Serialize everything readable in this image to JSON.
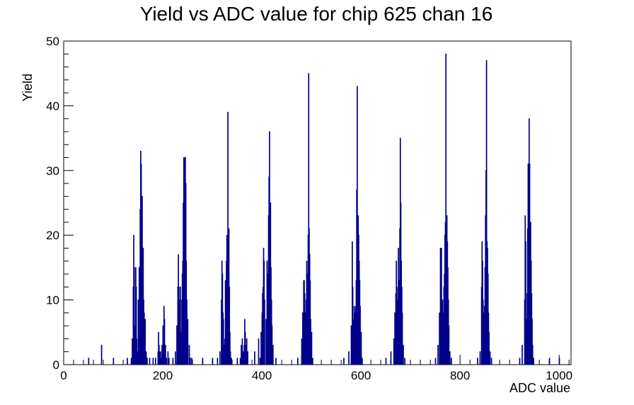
{
  "chart_data": {
    "type": "histogram",
    "title": "Yield vs ADC value for chip 625 chan 16",
    "xlabel": "ADC value",
    "ylabel": "Yield",
    "xlim": [
      0,
      1024
    ],
    "ylim": [
      0,
      50
    ],
    "x_ticks": [
      "0",
      "200",
      "400",
      "600",
      "800",
      "1000"
    ],
    "y_ticks": [
      "0",
      "10",
      "20",
      "30",
      "40",
      "50"
    ],
    "bin_width": 1,
    "line_color": "#00008b",
    "grid": false,
    "bins": [
      [
        50,
        1
      ],
      [
        76,
        3
      ],
      [
        100,
        1
      ],
      [
        128,
        1
      ],
      [
        136,
        1
      ],
      [
        138,
        4
      ],
      [
        140,
        12
      ],
      [
        141,
        20
      ],
      [
        142,
        15
      ],
      [
        143,
        6
      ],
      [
        144,
        3
      ],
      [
        145,
        15
      ],
      [
        146,
        12
      ],
      [
        147,
        4
      ],
      [
        148,
        2
      ],
      [
        150,
        10
      ],
      [
        152,
        15
      ],
      [
        154,
        24
      ],
      [
        155,
        33
      ],
      [
        156,
        31
      ],
      [
        157,
        23
      ],
      [
        158,
        26
      ],
      [
        159,
        15
      ],
      [
        160,
        18
      ],
      [
        161,
        10
      ],
      [
        162,
        8
      ],
      [
        164,
        7
      ],
      [
        166,
        2
      ],
      [
        168,
        1
      ],
      [
        173,
        1
      ],
      [
        180,
        1
      ],
      [
        185,
        1
      ],
      [
        190,
        2
      ],
      [
        191,
        5
      ],
      [
        192,
        3
      ],
      [
        193,
        2
      ],
      [
        195,
        2
      ],
      [
        196,
        1
      ],
      [
        198,
        3
      ],
      [
        200,
        6
      ],
      [
        201,
        4
      ],
      [
        202,
        9
      ],
      [
        203,
        7
      ],
      [
        205,
        3
      ],
      [
        207,
        1
      ],
      [
        210,
        2
      ],
      [
        212,
        1
      ],
      [
        220,
        1
      ],
      [
        225,
        2
      ],
      [
        228,
        6
      ],
      [
        230,
        12
      ],
      [
        231,
        17
      ],
      [
        232,
        12
      ],
      [
        233,
        5
      ],
      [
        234,
        10
      ],
      [
        235,
        12
      ],
      [
        236,
        5
      ],
      [
        238,
        10
      ],
      [
        239,
        14
      ],
      [
        240,
        16
      ],
      [
        241,
        25
      ],
      [
        242,
        32
      ],
      [
        243,
        32
      ],
      [
        244,
        18
      ],
      [
        245,
        32
      ],
      [
        246,
        28
      ],
      [
        247,
        16
      ],
      [
        248,
        10
      ],
      [
        250,
        7
      ],
      [
        253,
        3
      ],
      [
        255,
        1
      ],
      [
        258,
        1
      ],
      [
        280,
        1
      ],
      [
        300,
        1
      ],
      [
        310,
        1
      ],
      [
        315,
        2
      ],
      [
        318,
        10
      ],
      [
        319,
        16
      ],
      [
        320,
        14
      ],
      [
        321,
        8
      ],
      [
        322,
        7
      ],
      [
        324,
        3
      ],
      [
        325,
        4
      ],
      [
        326,
        13
      ],
      [
        328,
        16
      ],
      [
        329,
        20
      ],
      [
        330,
        14
      ],
      [
        331,
        39
      ],
      [
        332,
        17
      ],
      [
        333,
        21
      ],
      [
        334,
        12
      ],
      [
        335,
        5
      ],
      [
        336,
        2
      ],
      [
        338,
        1
      ],
      [
        350,
        1
      ],
      [
        356,
        1
      ],
      [
        358,
        3
      ],
      [
        360,
        4
      ],
      [
        362,
        2
      ],
      [
        364,
        3
      ],
      [
        365,
        7
      ],
      [
        366,
        5
      ],
      [
        367,
        3
      ],
      [
        369,
        4
      ],
      [
        371,
        2
      ],
      [
        385,
        2
      ],
      [
        393,
        4
      ],
      [
        396,
        1
      ],
      [
        398,
        5
      ],
      [
        400,
        8
      ],
      [
        401,
        11
      ],
      [
        402,
        12
      ],
      [
        403,
        18
      ],
      [
        404,
        16
      ],
      [
        405,
        10
      ],
      [
        408,
        7
      ],
      [
        410,
        16
      ],
      [
        411,
        9
      ],
      [
        412,
        14
      ],
      [
        413,
        23
      ],
      [
        414,
        29
      ],
      [
        415,
        36
      ],
      [
        416,
        24
      ],
      [
        417,
        25
      ],
      [
        418,
        15
      ],
      [
        419,
        10
      ],
      [
        420,
        6
      ],
      [
        422,
        3
      ],
      [
        428,
        1
      ],
      [
        472,
        1
      ],
      [
        480,
        4
      ],
      [
        482,
        8
      ],
      [
        484,
        13
      ],
      [
        485,
        13
      ],
      [
        486,
        11
      ],
      [
        487,
        6
      ],
      [
        488,
        8
      ],
      [
        489,
        10
      ],
      [
        490,
        16
      ],
      [
        491,
        14
      ],
      [
        493,
        20
      ],
      [
        494,
        45
      ],
      [
        495,
        21
      ],
      [
        496,
        17
      ],
      [
        497,
        13
      ],
      [
        498,
        7
      ],
      [
        500,
        5
      ],
      [
        502,
        1
      ],
      [
        565,
        1
      ],
      [
        575,
        2
      ],
      [
        580,
        6
      ],
      [
        582,
        19
      ],
      [
        583,
        12
      ],
      [
        584,
        7
      ],
      [
        585,
        6
      ],
      [
        586,
        9
      ],
      [
        587,
        8
      ],
      [
        588,
        5
      ],
      [
        589,
        9
      ],
      [
        590,
        13
      ],
      [
        591,
        27
      ],
      [
        592,
        43
      ],
      [
        593,
        22
      ],
      [
        594,
        23
      ],
      [
        595,
        20
      ],
      [
        596,
        16
      ],
      [
        597,
        13
      ],
      [
        598,
        9
      ],
      [
        600,
        5
      ],
      [
        602,
        1
      ],
      [
        650,
        1
      ],
      [
        660,
        2
      ],
      [
        666,
        4
      ],
      [
        668,
        8
      ],
      [
        670,
        11
      ],
      [
        671,
        16
      ],
      [
        672,
        12
      ],
      [
        673,
        7
      ],
      [
        674,
        10
      ],
      [
        675,
        18
      ],
      [
        676,
        13
      ],
      [
        677,
        13
      ],
      [
        678,
        21
      ],
      [
        679,
        35
      ],
      [
        680,
        25
      ],
      [
        681,
        16
      ],
      [
        682,
        12
      ],
      [
        683,
        8
      ],
      [
        685,
        3
      ],
      [
        688,
        1
      ],
      [
        750,
        1
      ],
      [
        755,
        3
      ],
      [
        758,
        8
      ],
      [
        760,
        18
      ],
      [
        762,
        18
      ],
      [
        764,
        10
      ],
      [
        765,
        6
      ],
      [
        766,
        8
      ],
      [
        767,
        12
      ],
      [
        768,
        14
      ],
      [
        769,
        20
      ],
      [
        770,
        22
      ],
      [
        771,
        48
      ],
      [
        772,
        21
      ],
      [
        773,
        23
      ],
      [
        774,
        19
      ],
      [
        775,
        15
      ],
      [
        776,
        10
      ],
      [
        777,
        6
      ],
      [
        779,
        2
      ],
      [
        782,
        1
      ],
      [
        835,
        1
      ],
      [
        840,
        2
      ],
      [
        843,
        12
      ],
      [
        844,
        19
      ],
      [
        845,
        16
      ],
      [
        846,
        10
      ],
      [
        847,
        8
      ],
      [
        848,
        7
      ],
      [
        849,
        9
      ],
      [
        850,
        15
      ],
      [
        851,
        23
      ],
      [
        852,
        30
      ],
      [
        853,
        47
      ],
      [
        854,
        19
      ],
      [
        855,
        18
      ],
      [
        856,
        14
      ],
      [
        857,
        8
      ],
      [
        858,
        5
      ],
      [
        860,
        2
      ],
      [
        863,
        1
      ],
      [
        920,
        1
      ],
      [
        925,
        3
      ],
      [
        930,
        10
      ],
      [
        931,
        23
      ],
      [
        932,
        19
      ],
      [
        933,
        7
      ],
      [
        934,
        6
      ],
      [
        935,
        11
      ],
      [
        936,
        21
      ],
      [
        937,
        31
      ],
      [
        938,
        30
      ],
      [
        939,
        38
      ],
      [
        940,
        31
      ],
      [
        941,
        20
      ],
      [
        942,
        22
      ],
      [
        943,
        16
      ],
      [
        944,
        11
      ],
      [
        945,
        7
      ],
      [
        946,
        3
      ],
      [
        948,
        1
      ],
      [
        980,
        1
      ],
      [
        1000,
        1
      ]
    ]
  }
}
